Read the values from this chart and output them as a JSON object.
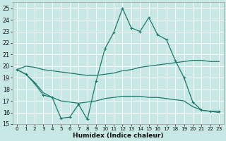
{
  "xlabel": "Humidex (Indice chaleur)",
  "xlim": [
    -0.5,
    23.5
  ],
  "ylim": [
    15,
    25.5
  ],
  "yticks": [
    15,
    16,
    17,
    18,
    19,
    20,
    21,
    22,
    23,
    24,
    25
  ],
  "xticks": [
    0,
    1,
    2,
    3,
    4,
    5,
    6,
    7,
    8,
    9,
    10,
    11,
    12,
    13,
    14,
    15,
    16,
    17,
    18,
    19,
    20,
    21,
    22,
    23
  ],
  "background_color": "#c8e8e5",
  "grid_color": "#b0d8d5",
  "line_color": "#1a7a6a",
  "line1_x": [
    0,
    1,
    2,
    3,
    4,
    5,
    6,
    7,
    8,
    9,
    10,
    11,
    12,
    13,
    14,
    15,
    16,
    17,
    18,
    19,
    20,
    21,
    22,
    23
  ],
  "line1_y": [
    19.7,
    20.0,
    19.9,
    19.7,
    19.6,
    19.5,
    19.4,
    19.3,
    19.2,
    19.2,
    19.3,
    19.4,
    19.6,
    19.7,
    19.9,
    20.0,
    20.1,
    20.2,
    20.3,
    20.4,
    20.5,
    20.5,
    20.4,
    20.4
  ],
  "line2_x": [
    0,
    1,
    2,
    3,
    4,
    5,
    6,
    7,
    8,
    9,
    10,
    11,
    12,
    13,
    14,
    15,
    16,
    17,
    18,
    19,
    20,
    21,
    22,
    23
  ],
  "line2_y": [
    19.7,
    19.3,
    18.5,
    17.5,
    17.3,
    15.5,
    15.6,
    16.7,
    15.4,
    18.7,
    21.5,
    22.9,
    25.0,
    23.3,
    23.0,
    24.2,
    22.7,
    22.3,
    20.5,
    19.0,
    16.9,
    16.2,
    16.1,
    16.1
  ],
  "line3_x": [
    0,
    1,
    2,
    3,
    4,
    5,
    6,
    7,
    8,
    9,
    10,
    11,
    12,
    13,
    14,
    15,
    16,
    17,
    18,
    19,
    20,
    21,
    22,
    23
  ],
  "line3_y": [
    19.7,
    19.3,
    18.6,
    17.7,
    17.3,
    17.0,
    16.9,
    16.8,
    16.9,
    17.0,
    17.2,
    17.3,
    17.4,
    17.4,
    17.4,
    17.3,
    17.3,
    17.2,
    17.1,
    17.0,
    16.5,
    16.2,
    16.1,
    16.0
  ]
}
